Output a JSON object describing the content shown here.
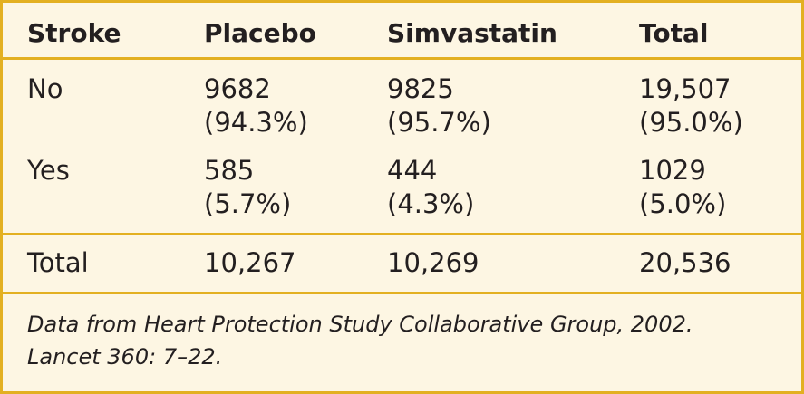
{
  "table": {
    "headers": [
      "Stroke",
      "Placebo",
      "Simvastatin",
      "Total"
    ],
    "rows": [
      {
        "label": "No",
        "values": [
          [
            "9682",
            "(94.3%)"
          ],
          [
            "9825",
            "(95.7%)"
          ],
          [
            "19,507",
            "(95.0%)"
          ]
        ]
      },
      {
        "label": "Yes",
        "values": [
          [
            "585",
            "(5.7%)"
          ],
          [
            "444",
            "(4.3%)"
          ],
          [
            "1029",
            "(5.0%)"
          ]
        ]
      }
    ],
    "total_row": {
      "label": "Total",
      "values": [
        "10,267",
        "10,269",
        "20,536"
      ]
    }
  },
  "footnote": {
    "line1": "Data from Heart Protection Study Collaborative Group, 2002.",
    "line2": "Lancet 360: 7–22."
  },
  "colors": {
    "border": "#e3b021",
    "background": "#fdf6e3",
    "text": "#231f20"
  }
}
